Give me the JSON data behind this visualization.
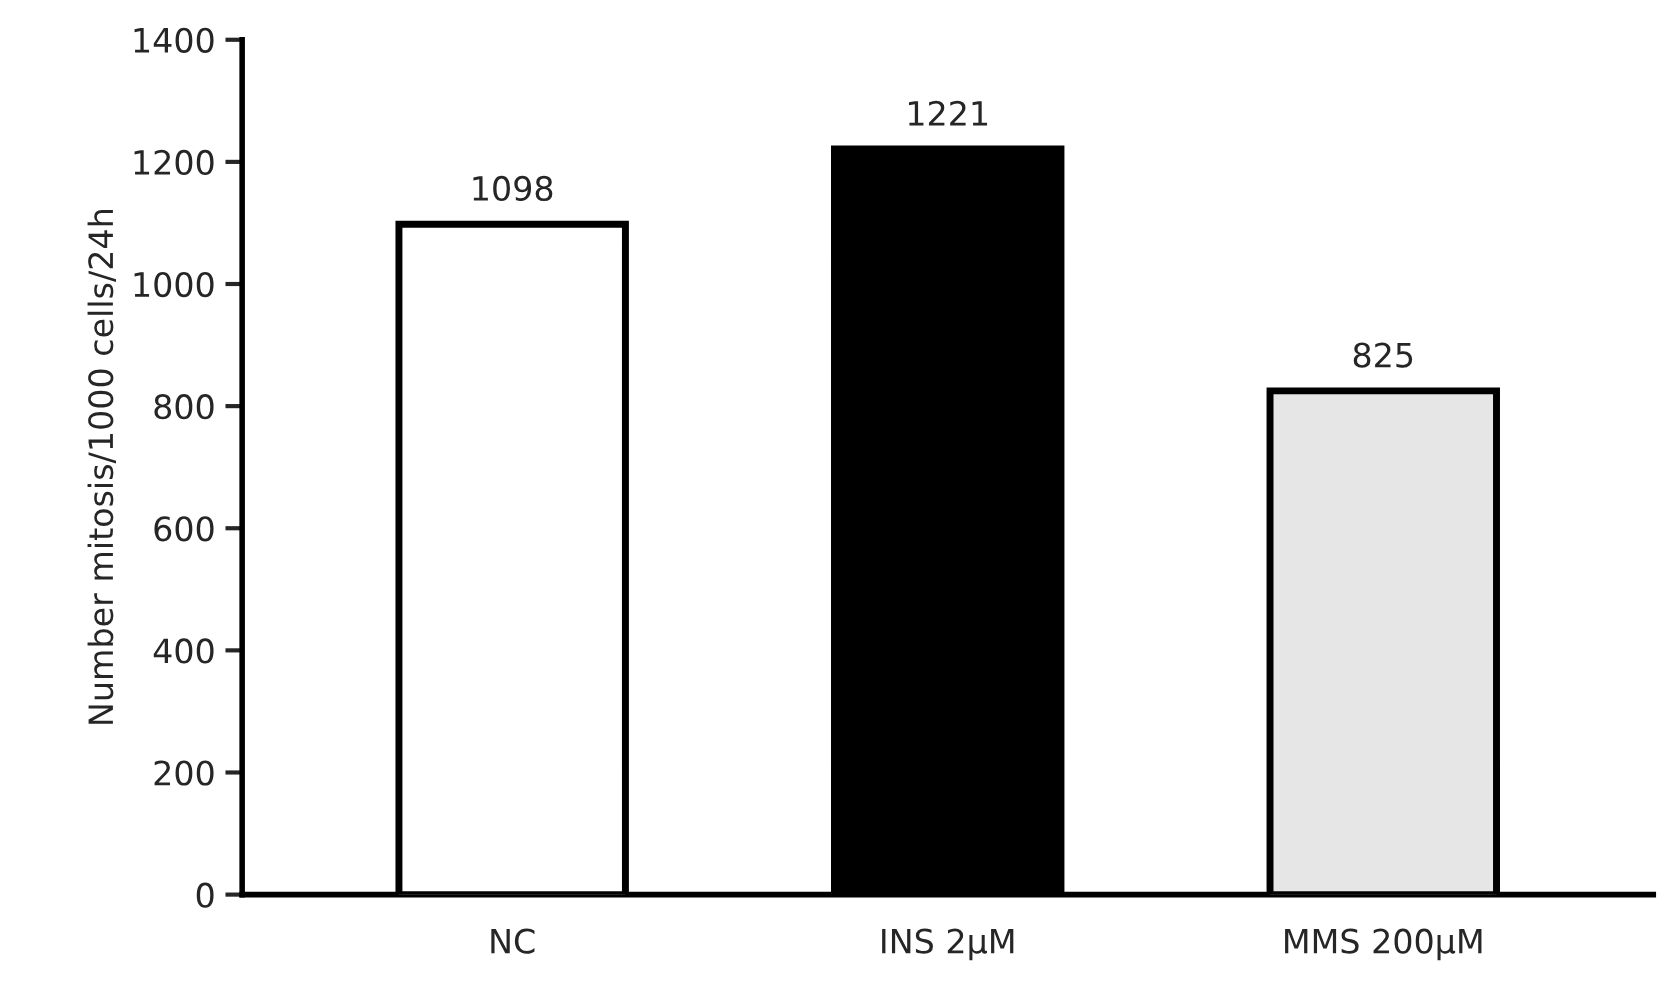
{
  "chart_data": {
    "type": "bar",
    "ylabel": "Number mitosis/1000 cells/24h",
    "categories": [
      "NC",
      "INS 2µM",
      "MMS 200µM"
    ],
    "values": [
      1098,
      1221,
      825
    ],
    "colors": [
      "#ffffff",
      "#000000",
      "#e7e6e6"
    ],
    "ylim": [
      0,
      1400
    ],
    "yticks": [
      0,
      200,
      400,
      600,
      800,
      1000,
      1200,
      1400
    ],
    "data_labels": true
  }
}
